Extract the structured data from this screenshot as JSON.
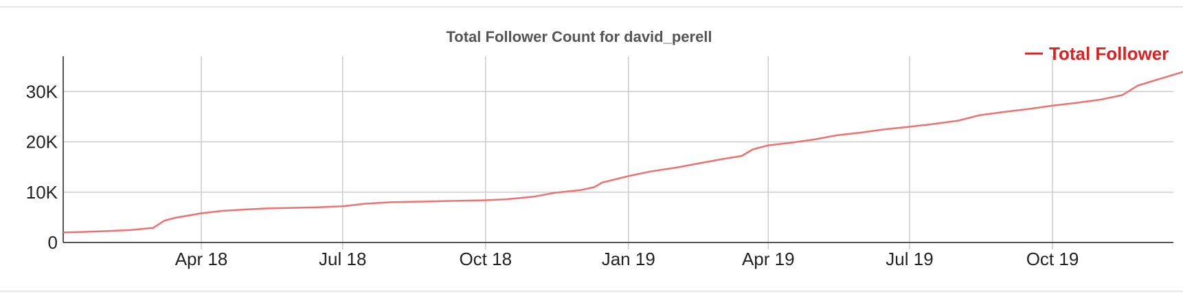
{
  "chart_data": {
    "type": "line",
    "title": "Total Follower Count for david_perell",
    "xlabel": "",
    "ylabel": "",
    "x_ticks": [
      "Apr 18",
      "Jul 18",
      "Oct 18",
      "Jan 19",
      "Apr 19",
      "Jul 19",
      "Oct 19"
    ],
    "y_ticks": [
      "0",
      "10K",
      "20K",
      "30K"
    ],
    "ylim": [
      0,
      37000
    ],
    "grid": true,
    "legend_position": "top-right",
    "series": [
      {
        "name": "Total Follower",
        "color": "#f07070",
        "points": [
          [
            "2018-01-01",
            2000
          ],
          [
            "2018-01-15",
            2100
          ],
          [
            "2018-02-01",
            2300
          ],
          [
            "2018-02-15",
            2500
          ],
          [
            "2018-03-01",
            2900
          ],
          [
            "2018-03-08",
            4300
          ],
          [
            "2018-03-15",
            4900
          ],
          [
            "2018-04-01",
            5800
          ],
          [
            "2018-04-15",
            6300
          ],
          [
            "2018-05-01",
            6600
          ],
          [
            "2018-05-15",
            6800
          ],
          [
            "2018-06-01",
            6900
          ],
          [
            "2018-06-15",
            7000
          ],
          [
            "2018-07-01",
            7200
          ],
          [
            "2018-07-15",
            7700
          ],
          [
            "2018-08-01",
            8000
          ],
          [
            "2018-08-15",
            8100
          ],
          [
            "2018-09-01",
            8200
          ],
          [
            "2018-09-15",
            8300
          ],
          [
            "2018-10-01",
            8400
          ],
          [
            "2018-10-15",
            8600
          ],
          [
            "2018-11-01",
            9100
          ],
          [
            "2018-11-15",
            9900
          ],
          [
            "2018-12-01",
            10400
          ],
          [
            "2018-12-10",
            11000
          ],
          [
            "2018-12-15",
            11900
          ],
          [
            "2019-01-01",
            13200
          ],
          [
            "2019-01-15",
            14100
          ],
          [
            "2019-02-01",
            14900
          ],
          [
            "2019-02-15",
            15700
          ],
          [
            "2019-03-01",
            16500
          ],
          [
            "2019-03-15",
            17200
          ],
          [
            "2019-03-22",
            18500
          ],
          [
            "2019-04-01",
            19300
          ],
          [
            "2019-04-15",
            19800
          ],
          [
            "2019-05-01",
            20500
          ],
          [
            "2019-05-15",
            21300
          ],
          [
            "2019-06-01",
            21900
          ],
          [
            "2019-06-15",
            22500
          ],
          [
            "2019-07-01",
            23000
          ],
          [
            "2019-07-15",
            23500
          ],
          [
            "2019-08-01",
            24200
          ],
          [
            "2019-08-15",
            25300
          ],
          [
            "2019-09-01",
            26000
          ],
          [
            "2019-09-15",
            26500
          ],
          [
            "2019-10-01",
            27200
          ],
          [
            "2019-10-15",
            27700
          ],
          [
            "2019-11-01",
            28400
          ],
          [
            "2019-11-15",
            29300
          ],
          [
            "2019-11-25",
            31200
          ],
          [
            "2019-12-10",
            32600
          ],
          [
            "2019-12-25",
            34000
          ]
        ]
      }
    ]
  }
}
